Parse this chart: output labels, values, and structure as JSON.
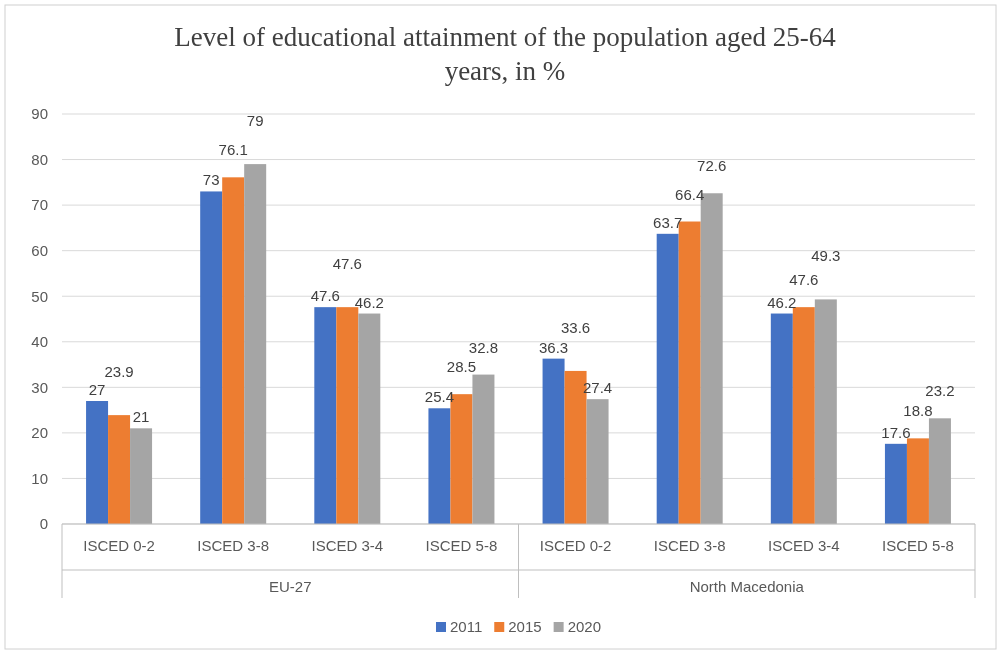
{
  "chart_data": {
    "type": "bar",
    "title": "Level of educational attainment of the population aged 25-64 years, in %",
    "categories": [
      "ISCED 0-2",
      "ISCED 3-8",
      "ISCED 3-4",
      "ISCED 5-8",
      "ISCED 0-2",
      "ISCED 3-8",
      "ISCED 3-4",
      "ISCED 5-8"
    ],
    "series": [
      {
        "name": "2011",
        "color": "#4472c4",
        "values": [
          27,
          73,
          47.6,
          25.4,
          36.3,
          63.7,
          46.2,
          17.6
        ]
      },
      {
        "name": "2015",
        "color": "#ed7d31",
        "values": [
          23.9,
          76.1,
          47.6,
          28.5,
          33.6,
          66.4,
          47.6,
          18.8
        ]
      },
      {
        "name": "2020",
        "color": "#a5a5a5",
        "values": [
          21,
          79,
          46.2,
          32.8,
          27.4,
          72.6,
          49.3,
          23.2
        ]
      }
    ],
    "annotations": [
      "EU-27",
      "North Macedonia"
    ],
    "ylim": [
      0,
      90
    ],
    "yticks": [
      0,
      10,
      20,
      30,
      40,
      50,
      60,
      70,
      80,
      90
    ],
    "grid": "y",
    "legend": "bottom",
    "data_labels": true
  }
}
